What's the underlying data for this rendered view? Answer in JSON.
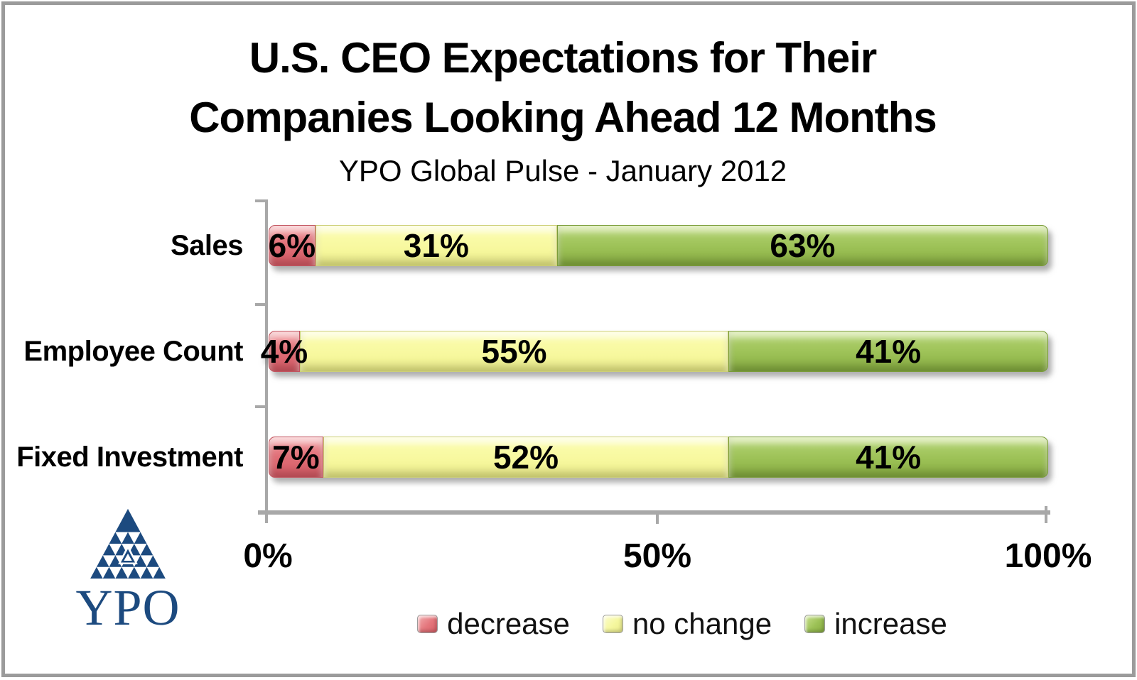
{
  "frame": {
    "background": "#ffffff",
    "border_color": "#9b9b9b",
    "axis_color": "#a8a8a8"
  },
  "chart_data": {
    "type": "bar",
    "orientation": "horizontal-stacked",
    "title_lines": [
      "U.S. CEO Expectations for Their",
      "Companies Looking Ahead 12 Months"
    ],
    "subtitle": "YPO Global Pulse -  January 2012",
    "categories": [
      "Sales",
      "Employee Count",
      "Fixed Investment"
    ],
    "series": [
      {
        "name": "decrease",
        "color": "#e0707a",
        "values": [
          6,
          4,
          7
        ]
      },
      {
        "name": "no change",
        "color": "#f7f89e",
        "values": [
          31,
          55,
          52
        ]
      },
      {
        "name": "increase",
        "color": "#9cc156",
        "values": [
          63,
          41,
          41
        ]
      }
    ],
    "value_labels": [
      [
        "6%",
        "31%",
        "63%"
      ],
      [
        "4%",
        "55%",
        "41%"
      ],
      [
        "7%",
        "52%",
        "41%"
      ]
    ],
    "x_axis": {
      "ticks": [
        "0%",
        "50%",
        "100%"
      ],
      "range": [
        0,
        100
      ],
      "grid": false
    },
    "legend": {
      "position": "bottom",
      "items": [
        "decrease",
        "no change",
        "increase"
      ]
    }
  },
  "logo": {
    "text": "YPO",
    "color": "#1c4a7f"
  }
}
